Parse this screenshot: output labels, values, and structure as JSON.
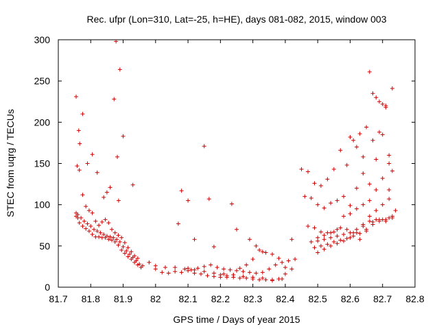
{
  "chart_data": {
    "type": "scatter",
    "title": "Rec. ufpr (Lon=310, Lat=-25, h=HE), days 081-082, 2015, window 003",
    "xlabel": "GPS time / Days of year 2015",
    "ylabel": "STEC from uqrg / TECUs",
    "xlim": [
      81.7,
      82.8
    ],
    "ylim": [
      0,
      300
    ],
    "xticks": [
      "81.7",
      "81.8",
      "81.9",
      "82",
      "82.1",
      "82.2",
      "82.3",
      "82.4",
      "82.5",
      "82.6",
      "82.7",
      "82.8"
    ],
    "yticks": [
      "0",
      "50",
      "100",
      "150",
      "200",
      "250",
      "300"
    ],
    "grid": false,
    "legend": "none",
    "marker": "plus",
    "color": "#cc0000",
    "series": [
      {
        "x": [
          81.755,
          81.76,
          81.765,
          81.775,
          81.785,
          81.795,
          81.805,
          81.815,
          81.825,
          81.835,
          81.845,
          81.855,
          81.865,
          81.875,
          81.885,
          81.895,
          81.905,
          81.915,
          81.925,
          81.935,
          81.945,
          81.955,
          81.755,
          81.76,
          81.77,
          81.78,
          81.79,
          81.8,
          81.81,
          81.82,
          81.83,
          81.84,
          81.85,
          81.86,
          81.87,
          81.88,
          81.89,
          81.9,
          81.91,
          81.92,
          81.93,
          81.94,
          81.95,
          81.96,
          81.765,
          81.775,
          81.785,
          81.795,
          81.805,
          81.815,
          81.825,
          81.835,
          81.845,
          81.855,
          81.865,
          81.875,
          81.885,
          81.895,
          81.905,
          81.915,
          81.925,
          81.935,
          81.945,
          81.755,
          81.758,
          81.763,
          81.766,
          81.775,
          81.79,
          81.805,
          81.82,
          81.84,
          81.85,
          81.86,
          81.872,
          81.878,
          81.882,
          81.886,
          81.89,
          81.9,
          81.93,
          81.98,
          82.0,
          82.02,
          82.04,
          82.06,
          82.08,
          82.1,
          82.12,
          82.14,
          82.16,
          82.18,
          82.2,
          82.22,
          82.24,
          82.26,
          82.28,
          82.3,
          82.32,
          82.34,
          82.36,
          82.38,
          82.4,
          82.0,
          82.03,
          82.06,
          82.09,
          82.12,
          82.15,
          82.18,
          82.21,
          82.24,
          82.27,
          82.3,
          82.33,
          82.36,
          82.39,
          82.42,
          82.1,
          82.11,
          82.13,
          82.15,
          82.17,
          82.19,
          82.21,
          82.23,
          82.25,
          82.27,
          82.29,
          82.31,
          82.33,
          82.35,
          82.37,
          82.39,
          82.41,
          82.43,
          82.2,
          82.22,
          82.24,
          82.26,
          82.28,
          82.3,
          82.32,
          82.34,
          82.36,
          82.38,
          82.4,
          82.08,
          82.1,
          82.12,
          82.165,
          82.15,
          82.18,
          82.235,
          82.25,
          82.07,
          82.29,
          82.31,
          82.33,
          82.42,
          82.45,
          82.47,
          82.49,
          82.51,
          82.53,
          82.55,
          82.57,
          82.59,
          82.61,
          82.63,
          82.65,
          82.67,
          82.69,
          82.71,
          82.73,
          82.46,
          82.48,
          82.5,
          82.52,
          82.54,
          82.56,
          82.58,
          82.6,
          82.62,
          82.64,
          82.66,
          82.68,
          82.7,
          82.72,
          82.47,
          82.49,
          82.51,
          82.53,
          82.55,
          82.57,
          82.59,
          82.61,
          82.63,
          82.65,
          82.67,
          82.69,
          82.71,
          82.73,
          82.48,
          82.5,
          82.52,
          82.54,
          82.56,
          82.58,
          82.6,
          82.62,
          82.64,
          82.66,
          82.68,
          82.7,
          82.72,
          82.49,
          82.51,
          82.53,
          82.55,
          82.57,
          82.59,
          82.61,
          82.63,
          82.65,
          82.67,
          82.69,
          82.71,
          82.73,
          82.5,
          82.52,
          82.54,
          82.56,
          82.58,
          82.6,
          82.62,
          82.64,
          82.66,
          82.68,
          82.7,
          82.72,
          82.6,
          82.62,
          82.64,
          82.66,
          82.67,
          82.68,
          82.69,
          82.7,
          82.71,
          82.72,
          82.73,
          82.5,
          82.52,
          82.54,
          82.56,
          82.58,
          82.6,
          82.62,
          82.64,
          82.66,
          82.68,
          82.7,
          82.72,
          82.74
        ],
        "y": [
          86,
          84,
          78,
          74,
          71,
          68,
          64,
          61,
          61,
          60,
          60,
          58,
          57,
          55,
          51,
          45,
          41,
          37,
          34,
          30,
          27,
          24,
          90,
          88,
          84,
          80,
          77,
          74,
          70,
          68,
          66,
          64,
          62,
          61,
          60,
          58,
          55,
          49,
          44,
          40,
          36,
          32,
          28,
          26,
          142,
          112,
          98,
          93,
          90,
          80,
          75,
          79,
          82,
          78,
          70,
          66,
          63,
          60,
          54,
          48,
          43,
          38,
          35,
          231,
          147,
          190,
          174,
          210,
          150,
          161,
          139,
          109,
          115,
          121,
          228,
          298,
          158,
          105,
          264,
          183,
          124,
          30,
          22,
          18,
          17,
          19,
          18,
          20,
          17,
          16,
          14,
          13,
          12,
          12,
          12,
          11,
          11,
          10,
          9,
          9,
          8,
          10,
          16,
          26,
          24,
          24,
          22,
          21,
          19,
          17,
          16,
          15,
          13,
          12,
          11,
          9,
          10,
          22,
          23,
          21,
          23,
          25,
          27,
          24,
          22,
          21,
          20,
          19,
          18,
          17,
          18,
          22,
          27,
          30,
          32,
          34,
          15,
          14,
          15,
          23,
          27,
          34,
          45,
          42,
          40,
          35,
          24,
          117,
          105,
          58,
          107,
          171,
          49,
          101,
          70,
          77,
          58,
          50,
          43,
          58,
          143,
          140,
          126,
          123,
          131,
          143,
          166,
          148,
          178,
          186,
          194,
          178,
          188,
          218,
          241,
          110,
          108,
          100,
          96,
          102,
          105,
          110,
          99,
          120,
          138,
          125,
          155,
          185,
          150,
          74,
          72,
          67,
          66,
          67,
          72,
          70,
          66,
          58,
          68,
          79,
          82,
          80,
          86,
          55,
          56,
          58,
          60,
          62,
          64,
          66,
          70,
          76,
          80,
          82,
          82,
          84,
          48,
          50,
          52,
          55,
          57,
          59,
          62,
          65,
          70,
          76,
          80,
          82,
          84,
          42,
          46,
          50,
          53,
          56,
          60,
          66,
          74,
          86,
          93,
          100,
          107,
          182,
          170,
          158,
          261,
          235,
          230,
          225,
          222,
          220,
          160,
          141,
          60,
          63,
          66,
          70,
          86,
          89,
          95,
          100,
          105,
          118,
          132,
          118,
          93
        ]
      }
    ]
  }
}
